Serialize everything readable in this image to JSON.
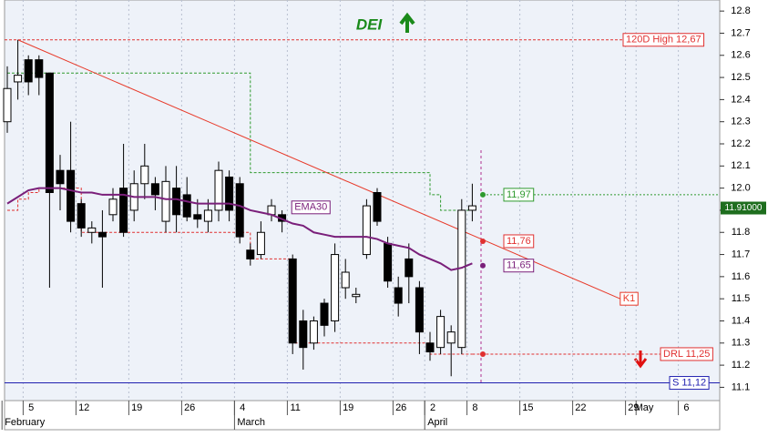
{
  "chart_data": {
    "type": "candlestick",
    "title": "DEI",
    "categories": [
      null,
      null,
      "5",
      null,
      null,
      null,
      null,
      "12",
      null,
      null,
      null,
      null,
      "19",
      null,
      null,
      null,
      null,
      "26",
      null,
      null,
      null,
      null,
      "4",
      null,
      null,
      null,
      null,
      "11",
      null,
      null,
      null,
      null,
      "19",
      null,
      null,
      null,
      null,
      "26",
      null,
      null,
      "2",
      null,
      null,
      null,
      "8",
      null,
      null,
      null,
      null,
      "15",
      null,
      null,
      null,
      null,
      "22",
      null,
      null,
      null,
      null,
      "29",
      "May",
      null,
      null,
      null,
      "6",
      null,
      null
    ],
    "months": [
      "February",
      null,
      null,
      null,
      null,
      null,
      null,
      null,
      null,
      null,
      null,
      null,
      null,
      null,
      null,
      null,
      null,
      null,
      null,
      null,
      null,
      null,
      "March",
      null,
      null,
      null,
      null,
      null,
      null,
      null,
      null,
      null,
      null,
      null,
      null,
      null,
      null,
      null,
      null,
      null,
      "April",
      null,
      null,
      null,
      null,
      null,
      null,
      null,
      null,
      null,
      null,
      null,
      null,
      null,
      null,
      null,
      null,
      null,
      null,
      null,
      null,
      null,
      null,
      null,
      null,
      null,
      null
    ],
    "candles": {
      "open": [
        12.3,
        12.48,
        12.58,
        12.58,
        12.52,
        12.08,
        12.08,
        11.93,
        11.8,
        11.8,
        11.88,
        12.0,
        11.9,
        12.02,
        12.02,
        11.85,
        12.0,
        11.97,
        11.88,
        11.85,
        11.9,
        12.05,
        12.02,
        11.72,
        11.7,
        11.88,
        11.88,
        11.68,
        11.4,
        11.3,
        11.48,
        11.4,
        11.55,
        11.51,
        11.7,
        11.98,
        11.75,
        11.55,
        11.68,
        11.55,
        11.3,
        11.28,
        11.3,
        11.28,
        11.9,
        null,
        null,
        null,
        null,
        null,
        null,
        null,
        null,
        null,
        null,
        null,
        null,
        null,
        null,
        null,
        null,
        null,
        null,
        null,
        null,
        null,
        null
      ],
      "high": [
        12.55,
        12.67,
        12.6,
        12.6,
        12.52,
        12.15,
        12.3,
        11.95,
        11.85,
        11.9,
        12.0,
        12.2,
        12.08,
        12.2,
        12.05,
        12.1,
        12.1,
        12.05,
        11.95,
        11.95,
        12.12,
        12.08,
        12.05,
        11.75,
        11.85,
        11.95,
        11.9,
        11.7,
        11.45,
        11.42,
        11.5,
        11.75,
        11.68,
        11.55,
        11.95,
        12.0,
        11.78,
        11.6,
        11.75,
        11.58,
        11.35,
        11.45,
        11.38,
        11.95,
        12.02,
        null,
        null,
        null,
        null,
        null,
        null,
        null,
        null,
        null,
        null,
        null,
        null,
        null,
        null,
        null,
        null,
        null,
        null,
        null,
        null,
        null,
        null
      ],
      "low": [
        12.25,
        12.4,
        12.42,
        12.42,
        11.55,
        11.9,
        11.8,
        11.78,
        11.75,
        11.55,
        11.85,
        11.78,
        11.85,
        11.95,
        11.9,
        11.8,
        11.8,
        11.85,
        11.82,
        11.8,
        11.85,
        11.85,
        11.75,
        11.65,
        11.68,
        11.85,
        11.8,
        11.25,
        11.18,
        11.27,
        11.33,
        11.35,
        11.5,
        11.48,
        11.68,
        11.83,
        11.55,
        11.42,
        11.48,
        11.25,
        11.22,
        11.25,
        11.15,
        11.25,
        11.85,
        null,
        null,
        null,
        null,
        null,
        null,
        null,
        null,
        null,
        null,
        null,
        null,
        null,
        null,
        null,
        null,
        null,
        null,
        null,
        null,
        null,
        null
      ],
      "close": [
        12.45,
        12.51,
        12.48,
        12.5,
        11.98,
        12.02,
        11.85,
        11.82,
        11.82,
        11.78,
        11.95,
        11.8,
        12.02,
        12.1,
        11.97,
        12.03,
        11.88,
        11.87,
        11.86,
        11.9,
        12.08,
        11.9,
        11.78,
        11.68,
        11.8,
        11.92,
        11.85,
        11.3,
        11.28,
        11.4,
        11.38,
        11.7,
        11.62,
        11.52,
        11.92,
        11.85,
        11.58,
        11.48,
        11.6,
        11.35,
        11.26,
        11.42,
        11.35,
        11.9,
        11.92,
        null,
        null,
        null,
        null,
        null,
        null,
        null,
        null,
        null,
        null,
        null,
        null,
        null,
        null,
        null,
        null,
        null,
        null,
        null,
        null,
        null,
        null
      ]
    },
    "series": [
      {
        "name": "EMA30",
        "color": "#7a1f7a",
        "values": [
          11.93,
          11.96,
          11.99,
          12.0,
          12.0,
          12.0,
          11.99,
          11.98,
          11.98,
          11.97,
          11.97,
          11.97,
          11.96,
          11.96,
          11.96,
          11.95,
          11.95,
          11.94,
          11.93,
          11.93,
          11.93,
          11.93,
          11.92,
          11.9,
          11.89,
          11.88,
          11.86,
          11.84,
          11.83,
          11.8,
          11.79,
          11.78,
          11.78,
          11.78,
          11.78,
          11.77,
          11.75,
          11.74,
          11.73,
          11.7,
          11.68,
          11.66,
          11.63,
          11.64,
          11.66,
          null,
          null,
          null,
          null,
          null,
          null,
          null,
          null,
          null,
          null,
          null,
          null,
          null,
          null,
          null,
          null,
          null,
          null,
          null,
          null,
          null,
          null
        ]
      }
    ],
    "stops": [
      {
        "color": "#2e9a2e",
        "values": [
          12.52,
          12.52,
          12.52,
          12.52,
          12.52,
          12.52,
          12.52,
          12.52,
          12.52,
          12.52,
          12.52,
          12.52,
          12.52,
          12.52,
          12.52,
          12.52,
          12.52,
          12.52,
          12.52,
          12.52,
          12.52,
          12.52,
          12.52,
          12.07,
          12.07,
          12.07,
          12.07,
          12.07,
          12.07,
          12.07,
          12.07,
          12.07,
          12.07,
          12.07,
          12.07,
          12.07,
          12.07,
          12.07,
          12.07,
          12.07,
          11.97,
          11.9,
          11.9,
          11.9,
          11.92,
          null,
          null,
          null,
          null,
          null,
          null,
          null,
          null,
          null,
          null,
          null,
          null,
          null,
          null,
          null,
          null,
          null,
          null,
          null,
          null,
          null,
          null
        ]
      },
      {
        "color": "#e03030",
        "values": [
          11.9,
          11.95,
          11.98,
          12.0,
          12.0,
          12.0,
          12.0,
          11.8,
          11.8,
          11.8,
          11.8,
          11.8,
          11.8,
          11.8,
          11.8,
          11.8,
          11.8,
          11.8,
          11.8,
          11.8,
          11.8,
          11.8,
          11.8,
          11.68,
          11.68,
          11.68,
          11.68,
          11.3,
          11.3,
          11.3,
          11.3,
          11.3,
          11.3,
          11.3,
          11.3,
          11.3,
          11.3,
          11.3,
          11.3,
          11.3,
          11.25,
          11.25,
          11.25,
          11.25,
          11.25,
          null,
          null,
          null,
          null,
          null,
          null,
          null,
          null,
          null,
          null,
          null,
          null,
          null,
          null,
          null,
          null,
          null,
          null,
          null,
          null,
          null,
          null
        ]
      }
    ],
    "trendline": {
      "name": "K1",
      "color": "#e83a2a",
      "points": [
        [
          1,
          12.67
        ],
        [
          58,
          11.5
        ]
      ]
    },
    "levels": [
      {
        "label": "120D High 12,67",
        "value": 12.67,
        "color": "#e03030"
      },
      {
        "label": "DRL 11,25",
        "value": 11.25,
        "color": "#e03030"
      },
      {
        "label": "S 11,12",
        "value": 11.12,
        "color": "#2020b0"
      }
    ],
    "markers": [
      {
        "value": 11.97,
        "label": "11,97",
        "color": "#2e9a2e"
      },
      {
        "value": 11.76,
        "label": "11,76",
        "color": "#e03030"
      },
      {
        "value": 11.65,
        "label": "11,65",
        "color": "#7a1f7a"
      },
      {
        "value": 11.25,
        "color": "#e03030"
      }
    ],
    "last_price": {
      "value": 11.91,
      "label": "11.91000",
      "color": "#1e6e1e"
    },
    "ylim": [
      11.04,
      12.85
    ],
    "yticks": [
      11.1,
      11.2,
      11.3,
      11.4,
      11.5,
      11.6,
      11.7,
      11.8,
      11.9,
      {
        "value": 12,
        "label": "12.0"
      },
      12.1,
      12.2,
      12.3,
      12.4,
      12.5,
      12.6,
      12.7,
      12.8
    ],
    "grid": true
  }
}
